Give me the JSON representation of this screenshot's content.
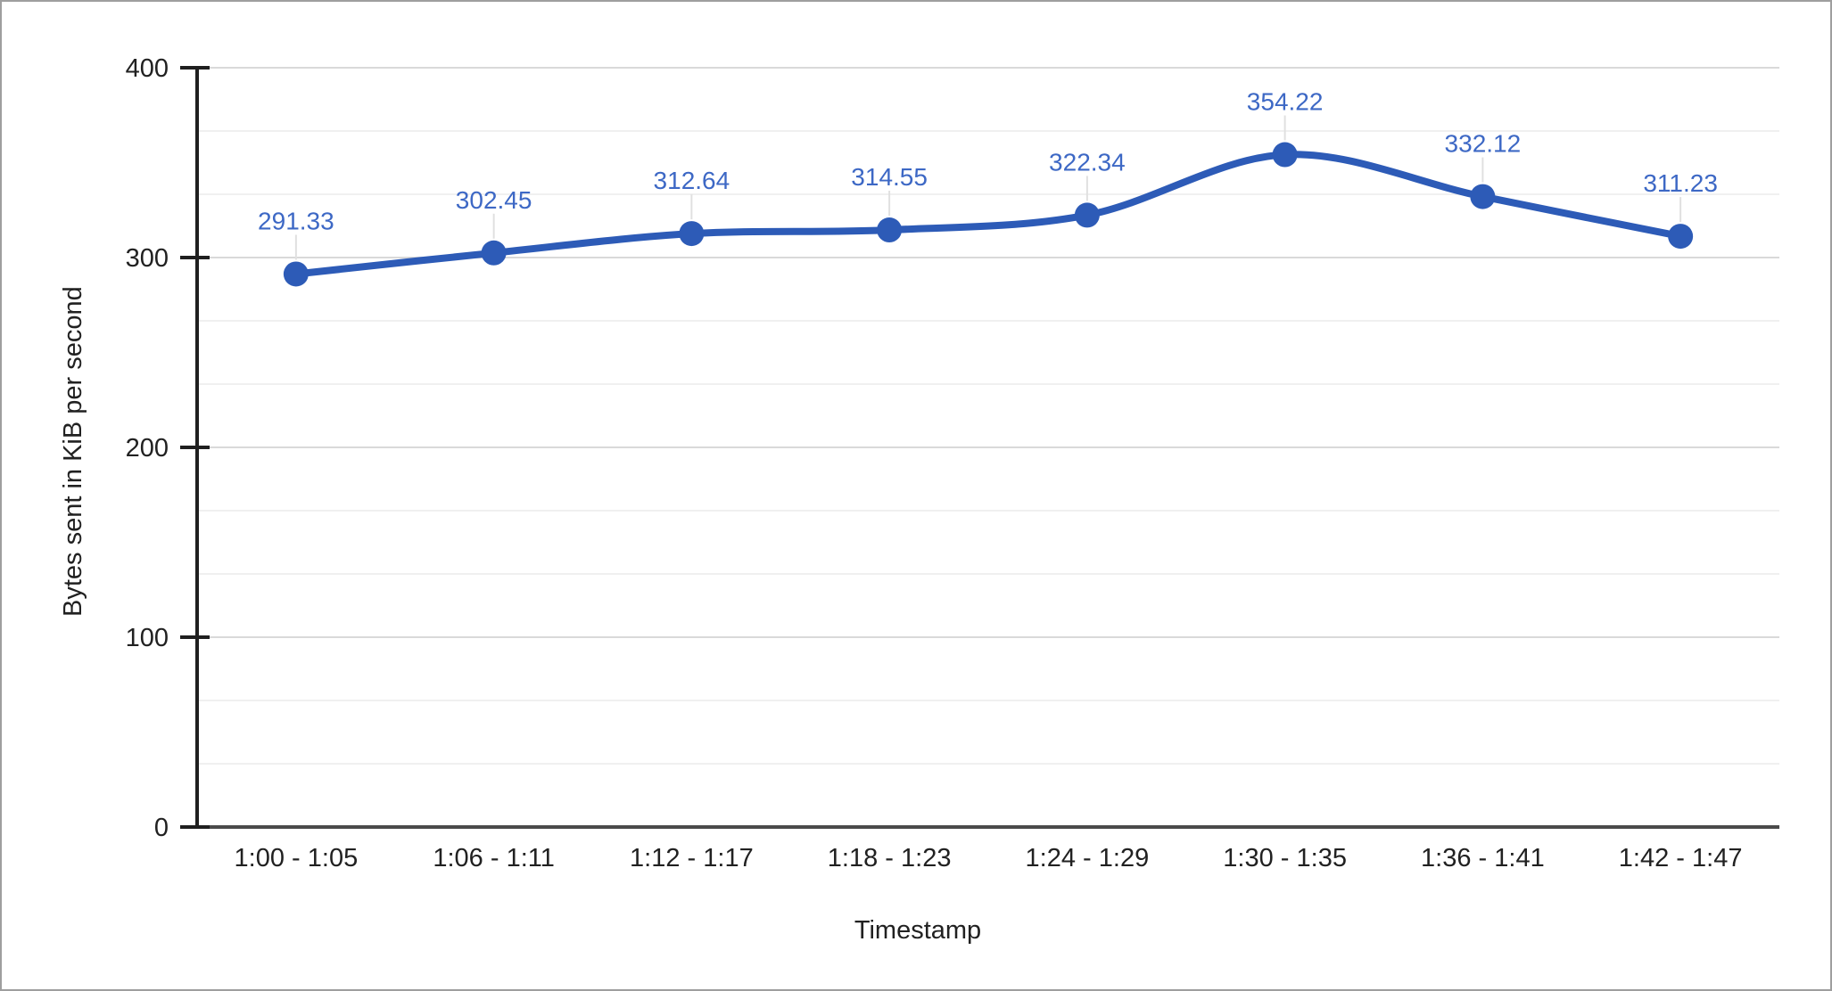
{
  "chart_data": {
    "type": "line",
    "title": "",
    "xlabel": "Timestamp",
    "ylabel": "Bytes sent in KiB per second",
    "categories": [
      "1:00 - 1:05",
      "1:06 - 1:11",
      "1:12 - 1:17",
      "1:18 - 1:23",
      "1:24 - 1:29",
      "1:30 - 1:35",
      "1:36 - 1:41",
      "1:42 - 1:47"
    ],
    "values": [
      291.33,
      302.45,
      312.64,
      314.55,
      322.34,
      354.22,
      332.12,
      311.23
    ],
    "data_labels": [
      "291.33",
      "302.45",
      "312.64",
      "314.55",
      "322.34",
      "354.22",
      "332.12",
      "311.23"
    ],
    "yticks": [
      0,
      100,
      200,
      300,
      400
    ],
    "ylim": [
      0,
      400
    ],
    "line_smooth": true,
    "legend": "none",
    "grid": {
      "major": true,
      "minor_per_major": 3
    },
    "colors": {
      "line": "#2d5bb7",
      "marker": "#2d5bb7",
      "data_label": "#3d68c5",
      "axis_text": "#212121",
      "major_grid": "#d9d9d9",
      "minor_grid": "#f0f0f0",
      "baseline": "#4a4a4a",
      "axis_line": "#1f1f1f",
      "connector": "#e0e0e0",
      "border": "#9e9e9e",
      "background": "#ffffff"
    }
  }
}
